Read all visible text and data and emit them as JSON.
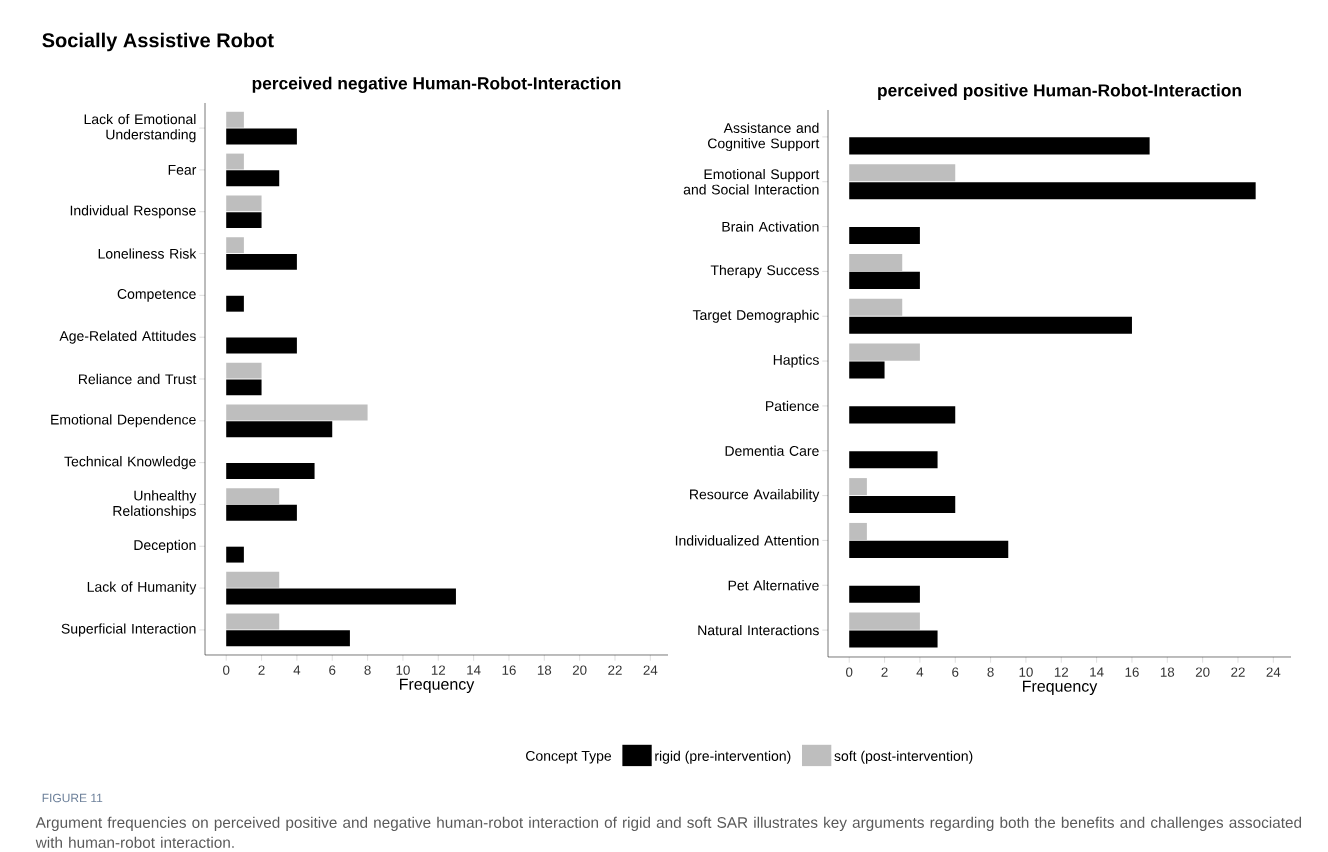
{
  "chart_data": [
    {
      "type": "bar",
      "orientation": "horizontal",
      "title": "Socially Assistive Robot",
      "subtitle": "perceived negative Human-Robot-Interaction",
      "xlabel": "Frequency",
      "categories": [
        "Lack of Emotional Understanding",
        "Fear",
        "Individual Response",
        "Loneliness Risk",
        "Competence",
        "Age-Related Attitudes",
        "Reliance and Trust",
        "Emotional Dependence",
        "Technical Knowledge",
        "Unhealthy Relationships",
        "Deception",
        "Lack of Humanity",
        "Superficial Interaction"
      ],
      "series": [
        {
          "color": "#000000",
          "values": [
            4,
            3,
            2,
            4,
            1,
            4,
            2,
            6,
            5,
            4,
            1,
            13,
            7
          ]
        },
        {
          "color": "#bebebe",
          "values": [
            1,
            1,
            2,
            1,
            null,
            null,
            2,
            8,
            null,
            3,
            null,
            3,
            3
          ]
        }
      ],
      "xlim": [
        -1.2,
        25
      ],
      "xticks": [
        0,
        2,
        4,
        6,
        8,
        10,
        12,
        14,
        16,
        18,
        20,
        22,
        24
      ],
      "grid": false
    },
    {
      "type": "bar",
      "orientation": "horizontal",
      "title": "perceived positive Human-Robot-Interaction",
      "xlabel": "Frequency",
      "legend": "bottom",
      "legend_title": "Concept Type",
      "categories": [
        "Assistance and Cognitive Support",
        "Emotional Support and Social Interaction",
        "Brain Activation",
        "Therapy Success",
        "Target Demographic",
        "Haptics",
        "Patience",
        "Dementia Care",
        "Resource Availability",
        "Individualized Attention",
        "Pet Alternative",
        "Natural Interactions"
      ],
      "series": [
        {
          "name": "rigid (pre-intervention)",
          "color": "#000000",
          "values": [
            17,
            23,
            4,
            4,
            16,
            2,
            6,
            5,
            6,
            9,
            4,
            5
          ]
        },
        {
          "name": "soft (post-intervention)",
          "color": "#bebebe",
          "values": [
            null,
            6,
            null,
            3,
            3,
            4,
            null,
            null,
            1,
            1,
            null,
            4
          ]
        }
      ],
      "xlim": [
        -1.2,
        25
      ],
      "xticks": [
        0,
        2,
        4,
        6,
        8,
        10,
        12,
        14,
        16,
        18,
        20,
        22,
        24
      ],
      "grid": false,
      "annotations": [
        "FIGURE 11",
        "Argument frequencies on perceived positive and negative human-robot interaction of rigid and soft SAR illustrates key arguments regarding both the benefits and challenges associated with human-robot interaction."
      ]
    }
  ]
}
